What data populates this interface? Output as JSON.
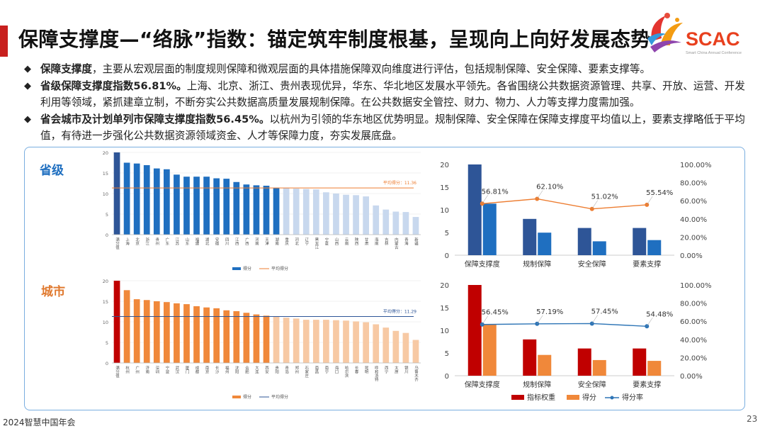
{
  "header": {
    "title": "保障支撑度—“络脉”指数：锚定筑牢制度根基，呈现向上向好发展态势",
    "logo_text": "SCAC",
    "logo_subtitle": "Smart China Annual Conference"
  },
  "bullets": [
    {
      "bold": "保障支撑度",
      "text": "，主要从宏观层面的制度规则保障和微观层面的具体措施保障双向维度进行评估，包括规制保障、安全保障、要素支撑等。"
    },
    {
      "bold": "省级保障支撑度指数56.81%。",
      "text": "上海、北京、浙江、贵州表现优异，华东、华北地区发展水平领先。各省围绕公共数据资源管理、共享、开放、运营、开发利用等领域，紧抓建章立制，不断夯实公共数据高质量发展规制保障。在公共数据安全管控、财力、物力、人力等支撑力度需加强。"
    },
    {
      "bold": "省会城市及计划单列市保障支撑度指数56.45%。",
      "text": "以杭州为引领的华东地区优势明显。规制保障、安全保障在保障支撑度平均值以上，要素支撑略低于平均值，有待进一步强化公共数据资源领域资金、人才等保障力度，夯实发展底盘。"
    }
  ],
  "labels": {
    "province": "省级",
    "city": "城市"
  },
  "footer": {
    "text": "2024智慧中国年会",
    "page": "23"
  },
  "colors": {
    "province_bar": "#1f6fc0",
    "province_bar_light": "#c8d8ee",
    "city_bar": "#f0883a",
    "city_bar_light": "#f7c9a4",
    "dark_blue": "#2e5597",
    "dark_red": "#c00000",
    "orange_line": "#ed7d31",
    "blue_line": "#2e75b6",
    "title_accent": "#c8201e"
  },
  "chart_data": [
    {
      "type": "bar",
      "name": "province-ranking",
      "ylim": [
        0,
        20
      ],
      "yticks": [
        0,
        5,
        10,
        15,
        20
      ],
      "categories": [
        "满分值",
        "上海",
        "北京",
        "浙江",
        "贵州",
        "广东",
        "江苏",
        "山东",
        "福建",
        "湖北",
        "安徽",
        "四川",
        "江西",
        "广西",
        "河南",
        "天津",
        "湖南",
        "重庆",
        "河北",
        "辽宁",
        "黑龙江",
        "宁夏",
        "山西",
        "云南",
        "陕西",
        "甘肃",
        "海南",
        "吉林",
        "内蒙古",
        "青海",
        "新疆"
      ],
      "values": [
        20,
        17.5,
        17.3,
        16.9,
        16.1,
        15.9,
        14.6,
        14.1,
        14.1,
        14.1,
        13.7,
        13.6,
        12.8,
        12.2,
        12.0,
        11.9,
        11.4,
        11.3,
        11.2,
        11.1,
        11.0,
        10.3,
        10.0,
        9.7,
        9.6,
        9.3,
        7.1,
        6.1,
        5.6,
        5.5,
        4.3
      ],
      "average": 11.36,
      "average_label": "平均得分：11.36",
      "legend": [
        "得分",
        "平均得分"
      ]
    },
    {
      "type": "bar",
      "name": "city-ranking",
      "ylim": [
        0,
        20
      ],
      "yticks": [
        0,
        5,
        10,
        15,
        20
      ],
      "categories": [
        "满分值",
        "杭州",
        "广州",
        "济南",
        "深圳",
        "宁波",
        "武汉",
        "厦门",
        "成都",
        "南京",
        "长沙",
        "福州",
        "沈阳",
        "合肥",
        "大连",
        "西安",
        "贵阳",
        "青岛",
        "郑州",
        "石家庄",
        "南昌",
        "南宁",
        "海口",
        "哈尔滨",
        "长春",
        "昆明",
        "呼和浩特",
        "西宁",
        "太原",
        "银川",
        "乌鲁木齐"
      ],
      "values": [
        20,
        17.7,
        15.5,
        15.3,
        15.0,
        14.8,
        14.5,
        14.3,
        13.8,
        13.5,
        13.3,
        12.8,
        12.6,
        12.2,
        11.8,
        11.5,
        11.2,
        11.0,
        10.8,
        10.5,
        10.5,
        10.5,
        10.4,
        10.3,
        10.1,
        9.9,
        9.4,
        8.6,
        7.8,
        7.3,
        5.6
      ],
      "average": 11.29,
      "average_label": "平均得分：11.29",
      "legend": [
        "得分",
        "平均得分"
      ]
    },
    {
      "type": "bar",
      "name": "province-dimensions",
      "categories": [
        "保障支撑度",
        "规制保障",
        "安全保障",
        "要素支撑"
      ],
      "ylim": [
        0,
        20
      ],
      "yticks": [
        0,
        5,
        10,
        15,
        20
      ],
      "y2lim": [
        0,
        100
      ],
      "y2ticks": [
        "0.00%",
        "20.00%",
        "40.00%",
        "60.00%",
        "80.00%",
        "100.00%"
      ],
      "series": [
        {
          "name": "指标权重",
          "values": [
            20,
            8,
            6,
            6
          ]
        },
        {
          "name": "得分",
          "values": [
            11.36,
            4.97,
            3.06,
            3.33
          ]
        },
        {
          "name": "得分率",
          "values": [
            56.81,
            62.1,
            51.02,
            55.54
          ],
          "labels": [
            "56.81%",
            "62.10%",
            "51.02%",
            "55.54%"
          ]
        }
      ]
    },
    {
      "type": "bar",
      "name": "city-dimensions",
      "categories": [
        "保障支撑度",
        "规制保障",
        "安全保障",
        "要素支撑"
      ],
      "ylim": [
        0,
        20
      ],
      "yticks": [
        0,
        5,
        10,
        15,
        20
      ],
      "y2lim": [
        0,
        100
      ],
      "y2ticks": [
        "0.00%",
        "20.00%",
        "40.00%",
        "60.00%",
        "80.00%",
        "100.00%"
      ],
      "series": [
        {
          "name": "指标权重",
          "values": [
            20,
            8,
            6,
            6
          ]
        },
        {
          "name": "得分",
          "values": [
            11.29,
            4.58,
            3.45,
            3.27
          ]
        },
        {
          "name": "得分率",
          "values": [
            56.45,
            57.19,
            57.45,
            54.48
          ],
          "labels": [
            "56.45%",
            "57.19%",
            "57.45%",
            "54.48%"
          ]
        }
      ],
      "legend": [
        "指标权重",
        "得分",
        "得分率"
      ]
    }
  ]
}
